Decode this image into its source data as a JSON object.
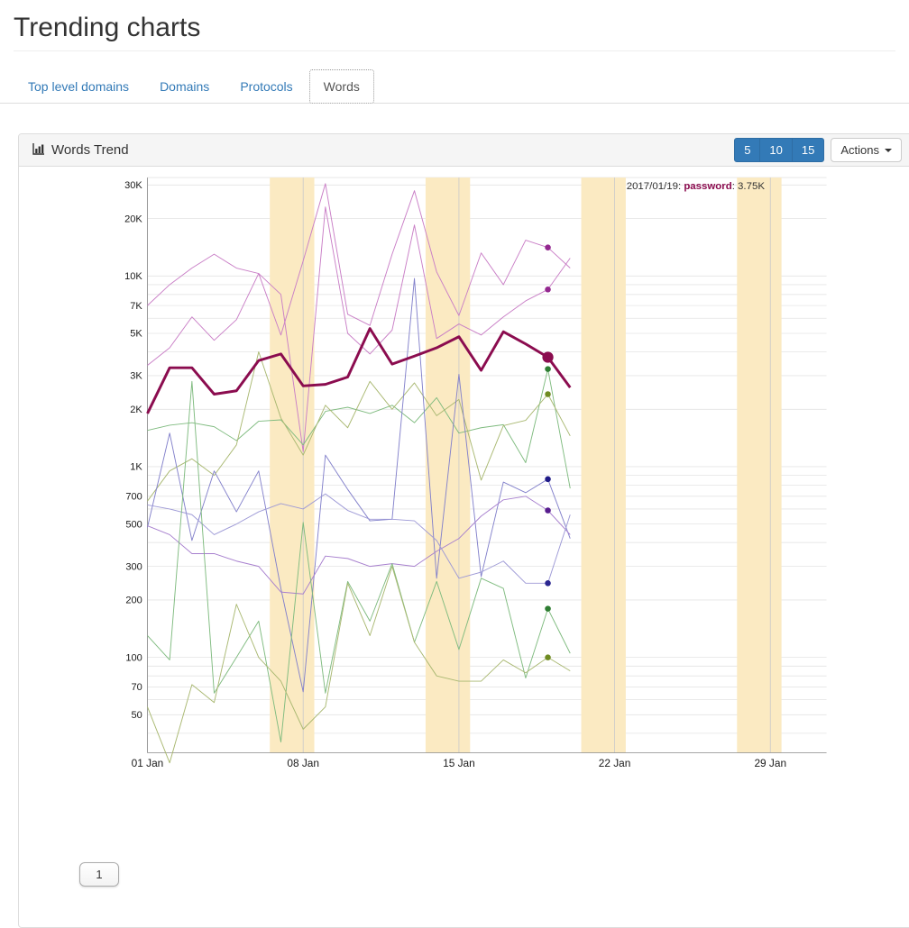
{
  "page": {
    "title": "Trending charts"
  },
  "tabs": [
    {
      "label": "Top level domains",
      "active": false
    },
    {
      "label": "Domains",
      "active": false
    },
    {
      "label": "Protocols",
      "active": false
    },
    {
      "label": "Words",
      "active": true
    }
  ],
  "panel": {
    "title": "Words Trend",
    "icon": "bar-chart-icon",
    "period_buttons": [
      "5",
      "10",
      "15"
    ],
    "actions_label": "Actions"
  },
  "tooltip": {
    "date": "2017/01/19",
    "word": "password",
    "value": "3.75K",
    "word_color": "#8B0C4F",
    "text_color": "#333333"
  },
  "slider_handle_label": "1",
  "chart_data": {
    "type": "line",
    "title": "Words Trend",
    "y_scale": "log",
    "ylim": [
      32,
      33000
    ],
    "x_unit": "days of January 2017",
    "days": [
      1,
      2,
      3,
      4,
      5,
      6,
      7,
      8,
      9,
      10,
      11,
      12,
      13,
      14,
      15,
      16,
      17,
      18,
      19,
      20
    ],
    "x_ticks": [
      [
        1,
        "01 Jan"
      ],
      [
        8,
        "08 Jan"
      ],
      [
        15,
        "15 Jan"
      ],
      [
        22,
        "22 Jan"
      ],
      [
        29,
        "29 Jan"
      ]
    ],
    "y_ticks": [
      [
        30000,
        "30K"
      ],
      [
        20000,
        "20K"
      ],
      [
        10000,
        "10K"
      ],
      [
        7000,
        "7K"
      ],
      [
        5000,
        "5K"
      ],
      [
        3000,
        "3K"
      ],
      [
        2000,
        "2K"
      ],
      [
        1000,
        "1K"
      ],
      [
        700,
        "700"
      ],
      [
        500,
        "500"
      ],
      [
        300,
        "300"
      ],
      [
        200,
        "200"
      ],
      [
        100,
        "100"
      ],
      [
        70,
        "70"
      ],
      [
        50,
        "50"
      ]
    ],
    "grid_values": [
      40,
      50,
      60,
      70,
      80,
      90,
      100,
      200,
      300,
      400,
      500,
      600,
      700,
      800,
      900,
      1000,
      2000,
      3000,
      4000,
      5000,
      6000,
      7000,
      8000,
      9000,
      10000,
      20000,
      30000
    ],
    "weekend_bands_days": [
      [
        7,
        8
      ],
      [
        14,
        15
      ],
      [
        21,
        22
      ],
      [
        28,
        29
      ]
    ],
    "band_color": "#FBEAC2",
    "grid_color": "#e4e4e4",
    "week_line_color": "#c9c9c9",
    "axis_color": "#999999",
    "highlight": {
      "series": "password",
      "day": 19,
      "value_label": "3.75K"
    },
    "series": [
      {
        "name": "pink-1",
        "color": "#C97EC6",
        "dot": "#93278F",
        "width": 1.15,
        "dot_r": 4,
        "values": [
          7000,
          9000,
          11000,
          13000,
          11000,
          10300,
          4900,
          12000,
          30500,
          6300,
          5500,
          13000,
          28000,
          10500,
          6200,
          13200,
          9000,
          15400,
          14100,
          11000
        ]
      },
      {
        "name": "pink-2",
        "color": "#C97EC6",
        "dot": "#93278F",
        "width": 1.15,
        "dot_r": 4,
        "values": [
          3400,
          4200,
          6100,
          4600,
          5900,
          10300,
          8000,
          1200,
          23000,
          5000,
          3900,
          5200,
          18500,
          4700,
          5600,
          4900,
          6100,
          7400,
          8500,
          12400
        ]
      },
      {
        "name": "green-1",
        "color": "#7FBB7F",
        "dot": "#2E7D32",
        "width": 1.15,
        "dot_r": 4,
        "values": [
          1550,
          1650,
          1700,
          1620,
          1370,
          1730,
          1760,
          1300,
          1950,
          2050,
          1900,
          2100,
          1700,
          2300,
          1500,
          1600,
          1660,
          1050,
          3250,
          770
        ]
      },
      {
        "name": "olive-1",
        "color": "#A9B871",
        "dot": "#6F8B22",
        "width": 1.15,
        "dot_r": 4,
        "values": [
          660,
          950,
          1100,
          900,
          1300,
          4000,
          1800,
          1150,
          2100,
          1600,
          2800,
          2000,
          2750,
          1850,
          2250,
          850,
          1640,
          1750,
          2400,
          1450
        ]
      },
      {
        "name": "blue-1",
        "color": "#8381CB",
        "dot": "#1F1A87",
        "width": 1.15,
        "dot_r": 4,
        "values": [
          480,
          1500,
          410,
          950,
          580,
          950,
          230,
          66,
          1150,
          760,
          520,
          530,
          9700,
          260,
          3050,
          265,
          830,
          730,
          860,
          420
        ]
      },
      {
        "name": "purple-1",
        "color": "#A77FCE",
        "dot": "#571C8E",
        "width": 1.15,
        "dot_r": 4,
        "values": [
          490,
          440,
          350,
          350,
          320,
          300,
          220,
          215,
          340,
          330,
          300,
          310,
          300,
          360,
          420,
          550,
          670,
          700,
          590,
          440
        ]
      },
      {
        "name": "lavender-1",
        "color": "#9D99D6",
        "dot": "#2A2690",
        "width": 1.15,
        "dot_r": 4,
        "values": [
          630,
          600,
          560,
          440,
          500,
          580,
          640,
          600,
          720,
          590,
          530,
          530,
          520,
          410,
          260,
          280,
          320,
          245,
          245,
          560
        ]
      },
      {
        "name": "green-2",
        "color": "#7FBB7F",
        "dot": "#2E7D32",
        "width": 1.15,
        "dot_r": 4,
        "values": [
          130,
          97,
          2800,
          65,
          100,
          155,
          36,
          510,
          65,
          250,
          155,
          310,
          120,
          250,
          110,
          260,
          230,
          78,
          180,
          105
        ]
      },
      {
        "name": "olive-2",
        "color": "#A9B871",
        "dot": "#6F8B22",
        "width": 1.15,
        "dot_r": 4,
        "values": [
          55,
          28,
          72,
          58,
          190,
          100,
          75,
          42,
          55,
          245,
          130,
          300,
          120,
          80,
          75,
          75,
          97,
          83,
          100,
          85
        ]
      },
      {
        "name": "password",
        "color": "#8B0C4F",
        "dot": "#8B0C4F",
        "width": 3.6,
        "dot_r": 7.5,
        "values": [
          1900,
          3300,
          3300,
          2400,
          2500,
          3600,
          3900,
          2650,
          2700,
          2950,
          5300,
          3450,
          3800,
          4200,
          4800,
          3200,
          5100,
          4400,
          3750,
          2600
        ]
      }
    ]
  }
}
